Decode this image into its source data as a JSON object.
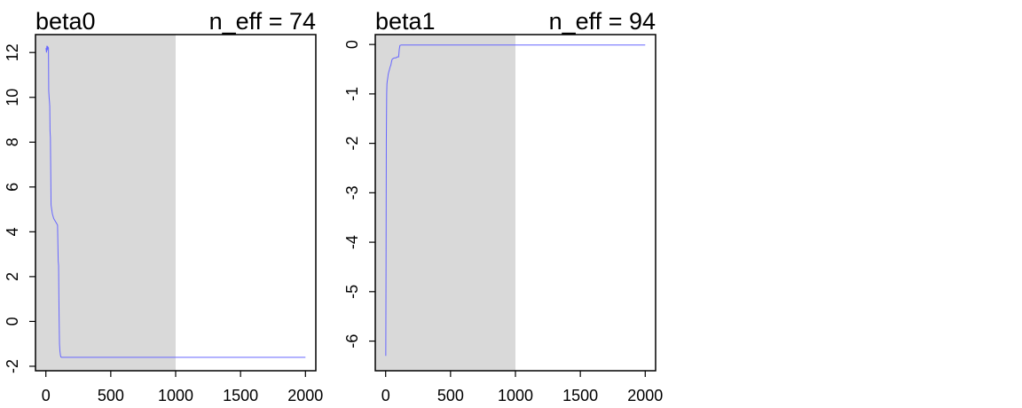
{
  "chart_data": [
    {
      "type": "line",
      "title": "beta0",
      "subtitle": "n_eff = 74",
      "xlabel": "",
      "ylabel": "",
      "xlim": [
        -80,
        2080
      ],
      "ylim": [
        -2.2,
        12.8
      ],
      "x_ticks": [
        0,
        500,
        1000,
        1500,
        2000
      ],
      "y_ticks": [
        -2,
        0,
        2,
        4,
        6,
        8,
        10,
        12
      ],
      "warmup_region": [
        -80,
        1000
      ],
      "warmup_color": "#d9d9d9",
      "line_color": "#6666ff",
      "grid": false,
      "series": [
        {
          "x": [
            1,
            5,
            8,
            10,
            15,
            20,
            22,
            25,
            28,
            30,
            32,
            35,
            40,
            45,
            50,
            55,
            60,
            65,
            70,
            80,
            90,
            95,
            98,
            100,
            102,
            105,
            108,
            112,
            115,
            120,
            130,
            200,
            500,
            1000,
            1500,
            2000
          ],
          "y": [
            12.2,
            12.0,
            12.3,
            12.1,
            12.25,
            12.2,
            10.3,
            10.0,
            9.8,
            9.6,
            8.5,
            8.2,
            5.2,
            5.0,
            4.8,
            4.7,
            4.6,
            4.55,
            4.5,
            4.4,
            4.3,
            2.7,
            2.5,
            1.2,
            0.2,
            -1.0,
            -1.3,
            -1.5,
            -1.58,
            -1.6,
            -1.6,
            -1.6,
            -1.6,
            -1.6,
            -1.6,
            -1.6
          ]
        }
      ]
    },
    {
      "type": "line",
      "title": "beta1",
      "subtitle": "n_eff = 94",
      "xlabel": "",
      "ylabel": "",
      "xlim": [
        -80,
        2080
      ],
      "ylim": [
        -6.6,
        0.2
      ],
      "x_ticks": [
        0,
        500,
        1000,
        1500,
        2000
      ],
      "y_ticks": [
        -6,
        -5,
        -4,
        -3,
        -2,
        -1,
        0
      ],
      "warmup_region": [
        -80,
        1000
      ],
      "warmup_color": "#d9d9d9",
      "line_color": "#6666ff",
      "grid": false,
      "series": [
        {
          "x": [
            1,
            3,
            5,
            8,
            10,
            12,
            15,
            20,
            25,
            30,
            35,
            40,
            45,
            50,
            60,
            70,
            80,
            90,
            100,
            105,
            110,
            120,
            200,
            500,
            1000,
            1500,
            2000
          ],
          "y": [
            -6.3,
            -4.5,
            -2.0,
            -1.0,
            -0.8,
            -0.75,
            -0.7,
            -0.6,
            -0.55,
            -0.5,
            -0.45,
            -0.42,
            -0.35,
            -0.3,
            -0.28,
            -0.27,
            -0.27,
            -0.25,
            -0.25,
            -0.1,
            -0.02,
            -0.01,
            -0.01,
            -0.01,
            -0.01,
            -0.01,
            -0.01
          ]
        }
      ]
    }
  ]
}
